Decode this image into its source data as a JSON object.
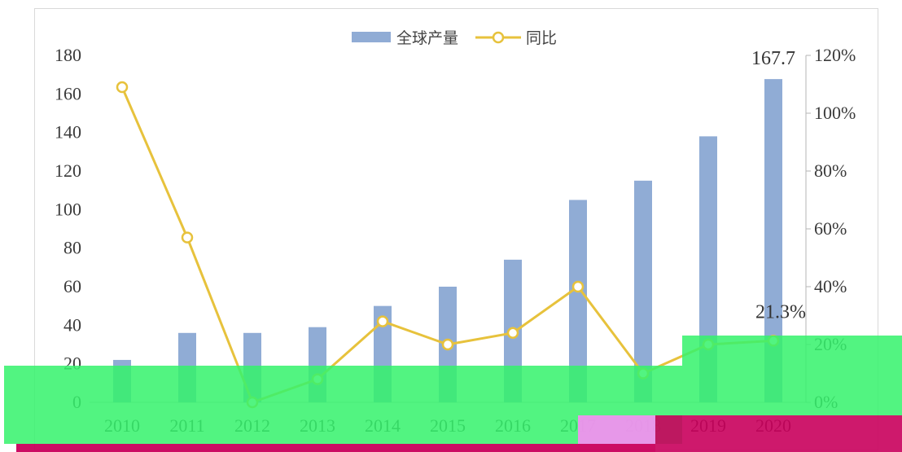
{
  "chart_data": {
    "type": "bar",
    "categories": [
      "2010",
      "2011",
      "2012",
      "2013",
      "2014",
      "2015",
      "2016",
      "2017",
      "2018",
      "2019",
      "2020"
    ],
    "series": [
      {
        "name": "全球产量",
        "type": "bar",
        "axis": "left",
        "color": "#90acd5",
        "values": [
          22,
          36,
          36,
          39,
          50,
          60,
          74,
          105,
          115,
          138,
          167.7
        ],
        "data_labels": {
          "2020": "167.7"
        }
      },
      {
        "name": "同比",
        "type": "line",
        "axis": "right",
        "color": "#e7c23c",
        "values": [
          109,
          57,
          0,
          8,
          28,
          20,
          24,
          40,
          10,
          20,
          21.3
        ],
        "data_labels": {
          "2020": "21.3%"
        }
      }
    ],
    "y_left": {
      "min": 0,
      "max": 180,
      "ticks": [
        0,
        20,
        40,
        60,
        80,
        100,
        120,
        140,
        160,
        180
      ]
    },
    "y_right": {
      "min": 0,
      "max": 120,
      "ticks": [
        0,
        20,
        40,
        60,
        80,
        100,
        120
      ],
      "tick_labels": [
        "0%",
        "20%",
        "40%",
        "60%",
        "80%",
        "100%",
        "120%"
      ]
    },
    "legend": {
      "position": "top-center"
    },
    "grid": false
  }
}
